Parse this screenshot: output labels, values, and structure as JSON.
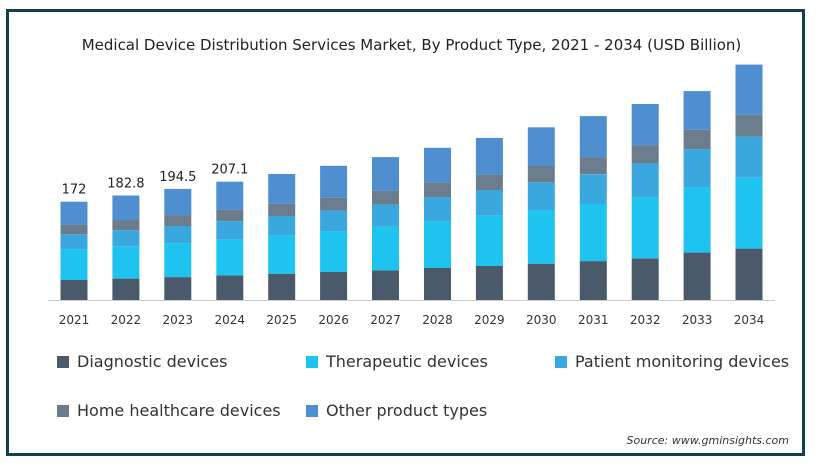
{
  "chart_data": {
    "type": "bar",
    "stacked": true,
    "title": "Medical Device Distribution Services Market, By Product Type, 2021 - 2034 (USD Billion)",
    "xlabel": "",
    "ylabel": "",
    "categories": [
      "2021",
      "2022",
      "2023",
      "2024",
      "2025",
      "2026",
      "2027",
      "2028",
      "2029",
      "2030",
      "2031",
      "2032",
      "2033",
      "2034"
    ],
    "totals": [
      172,
      182.8,
      194.5,
      207.1,
      220.5,
      234.8,
      250.1,
      266.4,
      283.7,
      302.2,
      321.9,
      343.0,
      365.5,
      412.0
    ],
    "total_labels": [
      "172",
      "182.8",
      "194.5",
      "207.1",
      "",
      "",
      "",
      "",
      "",
      "",
      "",
      "",
      "",
      ""
    ],
    "series": [
      {
        "name": "Diagnostic devices",
        "color": "#4a5a6a",
        "values": [
          35.0,
          37.5,
          40.0,
          43.0,
          46.0,
          49.0,
          52.0,
          56.0,
          59.5,
          63.5,
          68.0,
          73.0,
          83.0,
          90.0
        ]
      },
      {
        "name": "Therapeutic devices",
        "color": "#1ec4ef",
        "values": [
          54.0,
          56.5,
          59.5,
          63.0,
          67.0,
          71.5,
          76.0,
          82.0,
          88.0,
          94.0,
          100.0,
          107.0,
          114.0,
          124.0
        ]
      },
      {
        "name": "Patient monitoring devices",
        "color": "#3aa8de",
        "values": [
          26.0,
          28.0,
          30.0,
          32.0,
          34.0,
          36.0,
          39.0,
          42.0,
          45.0,
          48.5,
          52.0,
          59.0,
          67.0,
          72.0
        ]
      },
      {
        "name": "Home healthcare devices",
        "color": "#6b7c8c",
        "values": [
          17.0,
          18.0,
          19.0,
          20.0,
          21.5,
          22.5,
          24.0,
          25.5,
          27.0,
          28.5,
          30.0,
          32.0,
          34.0,
          38.0
        ]
      },
      {
        "name": "Other product types",
        "color": "#4f8fd0",
        "values": [
          40.0,
          42.8,
          46.0,
          49.1,
          52.0,
          55.8,
          59.1,
          60.9,
          64.2,
          67.7,
          71.9,
          72.0,
          67.5,
          88.0
        ]
      }
    ],
    "ylim": [
      0,
      420
    ],
    "grid": false,
    "legend_position": "bottom"
  },
  "source_text": "Source: www.gminsights.com"
}
